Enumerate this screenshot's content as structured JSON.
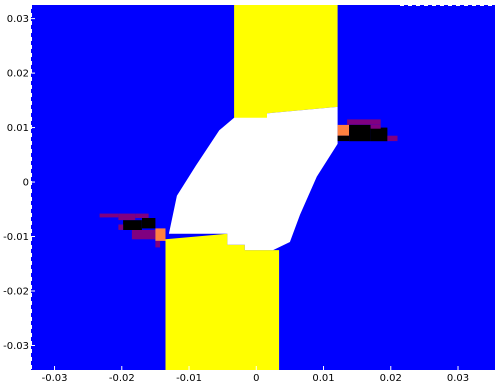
{
  "chart_data": {
    "type": "heatmap",
    "title": "",
    "xlabel": "",
    "ylabel": "",
    "xlim": [
      -0.0335,
      0.0355
    ],
    "ylim": [
      -0.0345,
      0.0325
    ],
    "grid": false,
    "legend": "none",
    "x_ticks": [
      {
        "value": -0.03,
        "label": "-0.03"
      },
      {
        "value": -0.02,
        "label": "-0.02"
      },
      {
        "value": -0.01,
        "label": "-0.01"
      },
      {
        "value": 0,
        "label": "0"
      },
      {
        "value": 0.01,
        "label": "0.01"
      },
      {
        "value": 0.02,
        "label": "0.02"
      },
      {
        "value": 0.03,
        "label": "0.03"
      }
    ],
    "y_ticks": [
      {
        "value": 0.03,
        "label": "0.03"
      },
      {
        "value": 0.02,
        "label": "0.02"
      },
      {
        "value": 0.01,
        "label": "0.01"
      },
      {
        "value": 0,
        "label": "0"
      },
      {
        "value": -0.01,
        "label": "-0.01"
      },
      {
        "value": -0.02,
        "label": "-0.02"
      },
      {
        "value": -0.03,
        "label": "-0.03"
      }
    ],
    "colors": {
      "background": "#0000ff",
      "yellow": "#ffff00",
      "white": "#ffffff",
      "black": "#000000",
      "purple": "#800080",
      "magenta": "#a0008c",
      "orange": "#ff8040"
    },
    "regions": [
      {
        "name": "upper-yellow-band",
        "color": "#ffff00",
        "polygon": [
          [
            -0.0033,
            0.0325
          ],
          [
            0.0121,
            0.0325
          ],
          [
            0.0121,
            0.0138
          ],
          [
            0.0016,
            0.0126
          ],
          [
            0.0016,
            0.0115
          ],
          [
            -0.0033,
            0.0115
          ]
        ]
      },
      {
        "name": "lower-yellow-band",
        "color": "#ffff00",
        "polygon": [
          [
            -0.0135,
            -0.0105
          ],
          [
            -0.0135,
            -0.0345
          ],
          [
            0.0034,
            -0.0345
          ],
          [
            0.0034,
            -0.0125
          ],
          [
            -0.0017,
            -0.0125
          ],
          [
            -0.0017,
            -0.0115
          ],
          [
            -0.0043,
            -0.0115
          ],
          [
            -0.0043,
            -0.0095
          ]
        ]
      },
      {
        "name": "central-white-region",
        "color": "#ffffff",
        "polygon": [
          [
            -0.013,
            -0.0095
          ],
          [
            -0.0118,
            -0.0025
          ],
          [
            -0.009,
            0.003
          ],
          [
            -0.0055,
            0.0095
          ],
          [
            -0.0033,
            0.0118
          ],
          [
            0.0016,
            0.0118
          ],
          [
            0.0016,
            0.0126
          ],
          [
            0.0121,
            0.0138
          ],
          [
            0.0121,
            0.007
          ],
          [
            0.009,
            0.001
          ],
          [
            0.0065,
            -0.006
          ],
          [
            0.005,
            -0.011
          ],
          [
            0.0025,
            -0.0125
          ],
          [
            -0.0017,
            -0.0125
          ],
          [
            -0.0017,
            -0.0115
          ],
          [
            -0.0043,
            -0.0115
          ],
          [
            -0.0043,
            -0.0095
          ]
        ]
      }
    ],
    "cells": [
      {
        "color": "#800080",
        "x": [
          -0.0233,
          -0.0205
        ],
        "y": [
          -0.0065,
          -0.0058
        ]
      },
      {
        "color": "#800080",
        "x": [
          -0.0205,
          -0.018
        ],
        "y": [
          -0.007,
          -0.0058
        ]
      },
      {
        "color": "#000000",
        "x": [
          -0.0198,
          -0.017
        ],
        "y": [
          -0.007,
          -0.0088
        ]
      },
      {
        "color": "#800080",
        "x": [
          -0.0205,
          -0.0198
        ],
        "y": [
          -0.0078,
          -0.0088
        ]
      },
      {
        "color": "#800080",
        "x": [
          -0.018,
          -0.016
        ],
        "y": [
          -0.0058,
          -0.0066
        ]
      },
      {
        "color": "#000000",
        "x": [
          -0.017,
          -0.015
        ],
        "y": [
          -0.0066,
          -0.0085
        ]
      },
      {
        "color": "#800080",
        "x": [
          -0.0185,
          -0.015
        ],
        "y": [
          -0.0088,
          -0.0105
        ]
      },
      {
        "color": "#ff8040",
        "x": [
          -0.015,
          -0.0135
        ],
        "y": [
          -0.0085,
          -0.0108
        ]
      },
      {
        "color": "#800080",
        "x": [
          -0.015,
          -0.0143
        ],
        "y": [
          -0.0108,
          -0.012
        ]
      },
      {
        "color": "#800080",
        "x": [
          0.0135,
          0.0185
        ],
        "y": [
          0.0115,
          0.0105
        ]
      },
      {
        "color": "#ff8040",
        "x": [
          0.0121,
          0.0138
        ],
        "y": [
          0.0105,
          0.0085
        ]
      },
      {
        "color": "#000000",
        "x": [
          0.0138,
          0.017
        ],
        "y": [
          0.0105,
          0.0075
        ]
      },
      {
        "color": "#000000",
        "x": [
          0.017,
          0.0195
        ],
        "y": [
          0.01,
          0.0075
        ]
      },
      {
        "color": "#800080",
        "x": [
          0.017,
          0.0185
        ],
        "y": [
          0.0105,
          0.0098
        ]
      },
      {
        "color": "#800080",
        "x": [
          0.0195,
          0.021
        ],
        "y": [
          0.0085,
          0.0075
        ]
      },
      {
        "color": "#000000",
        "x": [
          0.0121,
          0.0138
        ],
        "y": [
          0.0085,
          0.0075
        ]
      }
    ]
  }
}
